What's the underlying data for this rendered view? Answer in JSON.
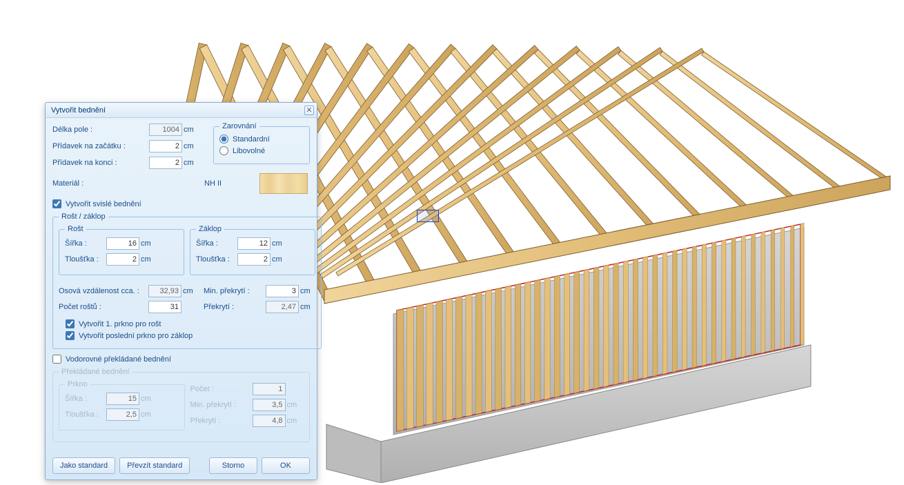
{
  "dialog": {
    "title": "Vytvořit bednění",
    "fields": {
      "delka_pole": {
        "label": "Délka pole :",
        "value": "1004",
        "unit": "cm"
      },
      "pridavek_zacatek": {
        "label": "Přídavek na začátku :",
        "value": "2",
        "unit": "cm"
      },
      "pridavek_konec": {
        "label": "Přídavek na konci :",
        "value": "2",
        "unit": "cm"
      }
    },
    "alignment": {
      "legend": "Zarovnání",
      "options": {
        "standard": "Standardní",
        "libovolne": "Libovolné"
      },
      "selected": "standard"
    },
    "material": {
      "label": "Materiál :",
      "name": "NH II"
    },
    "svisle": {
      "label": "Vytvořit svislé bednění",
      "checked": true
    },
    "rost_zaklop": {
      "legend": "Rošt / záklop",
      "rost": {
        "legend": "Rošt",
        "sirka": "16",
        "tloustka": "2"
      },
      "zaklop": {
        "legend": "Záklop",
        "sirka": "12",
        "tloustka": "2"
      },
      "sirka_label": "Šířka :",
      "tloustka_label": "Tloušťka :",
      "osova": {
        "label": "Osová vzdálenost cca. :",
        "value": "32,93",
        "unit": "cm"
      },
      "pocet_rostu": {
        "label": "Počet roštů :",
        "value": "31"
      },
      "min_prekryti": {
        "label": "Min. překrytí :",
        "value": "3",
        "unit": "cm"
      },
      "prekryti": {
        "label": "Překrytí :",
        "value": "2,47",
        "unit": "cm"
      },
      "chk_first": {
        "label": "Vytvořit 1. prkno pro rošt",
        "checked": true
      },
      "chk_last": {
        "label": "Vytvořit poslední prkno pro záklop",
        "checked": true
      }
    },
    "vodorovne": {
      "label": "Vodorovné překládané bednění",
      "checked": false
    },
    "prekladane": {
      "legend": "Překládané bednění",
      "prkno": {
        "legend": "Prkno",
        "sirka": "15",
        "tloustka": "2,5"
      },
      "pocet": {
        "label": "Počet :",
        "value": "1"
      },
      "min_prekryti": {
        "label": "Min. překrytí :",
        "value": "3,5",
        "unit": "cm"
      },
      "prekryti": {
        "label": "Překrytí :",
        "value": "4,8",
        "unit": "cm"
      }
    },
    "buttons": {
      "standard": "Jako standard",
      "take": "Převzít standard",
      "cancel": "Storno",
      "ok": "OK"
    }
  },
  "colors": {
    "wood_light": "#e8c888",
    "wood_mid": "#d4b06a",
    "wood_dark": "#b8924e",
    "wood_edge": "#7a5c2e",
    "concrete": "#d0d0d0",
    "concrete_dark": "#a8a8a8",
    "sel_outline": "#c02020"
  }
}
